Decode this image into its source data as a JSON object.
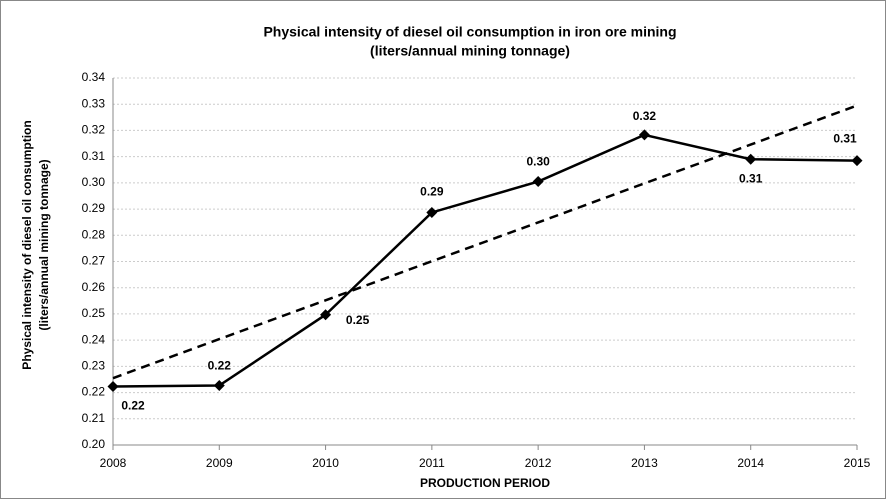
{
  "chart_data": {
    "type": "line",
    "title": [
      "Physical intensity of diesel oil consumption in iron ore mining",
      "(liters/annual mining tonnage)"
    ],
    "y_label": [
      "Physical intensity of diesel oil consumption",
      "(liters/annual mining tonnage)"
    ],
    "x_label": "PRODUCTION PERIOD",
    "x": [
      2008,
      2009,
      2010,
      2011,
      2012,
      2013,
      2014,
      2015
    ],
    "series": [
      {
        "color": "#000000",
        "marker": "diamond",
        "values": [
          0.2223,
          0.2227,
          0.2497,
          0.2887,
          0.3005,
          0.3183,
          0.309,
          0.3085
        ],
        "value_labels": [
          "0.22",
          "0.22",
          "0.25",
          "0.29",
          "0.30",
          "0.32",
          "0.31",
          "0.31"
        ]
      },
      {
        "color": "#000000",
        "dashed": true,
        "values": [
          0.2255,
          0.2404,
          0.2552,
          0.2701,
          0.2849,
          0.2998,
          0.3146,
          0.3295
        ]
      }
    ],
    "xlim": [
      2008,
      2015
    ],
    "xticks": [
      2008,
      2009,
      2010,
      2011,
      2012,
      2013,
      2014,
      2015
    ],
    "ylim": [
      0.2,
      0.34
    ],
    "yticks": [
      {
        "value": 0.2,
        "label": "0.20"
      },
      0.21,
      0.22,
      0.23,
      0.24,
      0.25,
      0.26,
      0.27,
      0.28,
      0.29,
      {
        "value": 0.3,
        "label": "0.30"
      },
      0.31,
      0.32,
      0.33,
      0.34
    ],
    "grid": true
  }
}
